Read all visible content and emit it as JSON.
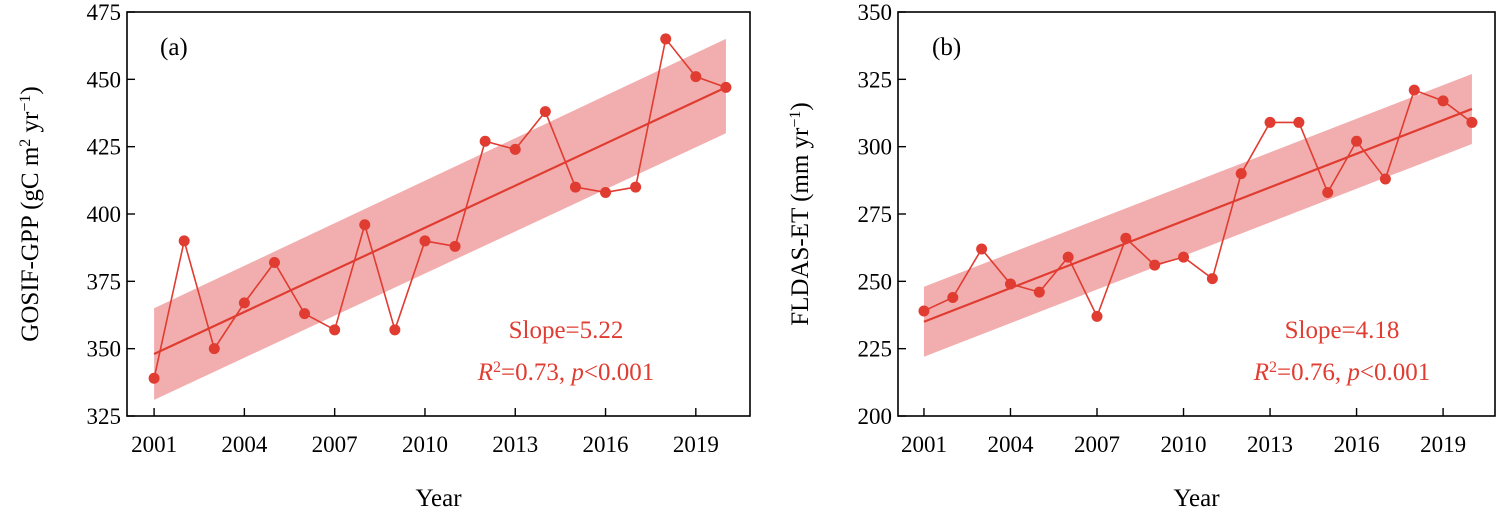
{
  "colors": {
    "series": "#e03c31",
    "band": "#f0a0a0",
    "annotation": "#e03c31"
  },
  "chart_data": [
    {
      "type": "line",
      "panel_label": "(a)",
      "xlabel": "Year",
      "ylabel_main": "GOSIF-GPP (gC m",
      "ylabel_sup1": "2",
      "ylabel_mid": " yr",
      "ylabel_sup2": "−1",
      "ylabel_end": ")",
      "xlim": [
        2000.1,
        2020.8
      ],
      "ylim": [
        325,
        475
      ],
      "xticks": [
        2001,
        2004,
        2007,
        2010,
        2013,
        2016,
        2019
      ],
      "yticks": [
        325,
        350,
        375,
        400,
        425,
        450,
        475
      ],
      "x": [
        2001,
        2002,
        2003,
        2004,
        2005,
        2006,
        2007,
        2008,
        2009,
        2010,
        2011,
        2012,
        2013,
        2014,
        2015,
        2016,
        2017,
        2018,
        2019,
        2020
      ],
      "series": [
        {
          "values": [
            339,
            390,
            350,
            367,
            382,
            363,
            357,
            396,
            357,
            390,
            388,
            427,
            424,
            438,
            410,
            408,
            410,
            465,
            451,
            447
          ]
        }
      ],
      "trend": {
        "x": [
          2001,
          2020
        ],
        "y": [
          348,
          447
        ]
      },
      "confidence_band": {
        "x": [
          2001,
          2020
        ],
        "upper": [
          365,
          465
        ],
        "lower": [
          331,
          430
        ]
      },
      "slope_text": "Slope=5.22",
      "r2_prefix": "R",
      "r2_sup": "2",
      "r2_value": "=0.73, ",
      "p_prefix": "p",
      "p_value": "<0.001"
    },
    {
      "type": "line",
      "panel_label": "(b)",
      "xlabel": "Year",
      "ylabel_main": "FLDAS-ET (mm yr",
      "ylabel_sup1": "",
      "ylabel_mid": "",
      "ylabel_sup2": "−1",
      "ylabel_end": ")",
      "xlim": [
        2000.1,
        2020.8
      ],
      "ylim": [
        200,
        350
      ],
      "xticks": [
        2001,
        2004,
        2007,
        2010,
        2013,
        2016,
        2019
      ],
      "yticks": [
        200,
        225,
        250,
        275,
        300,
        325,
        350
      ],
      "x": [
        2001,
        2002,
        2003,
        2004,
        2005,
        2006,
        2007,
        2008,
        2009,
        2010,
        2011,
        2012,
        2013,
        2014,
        2015,
        2016,
        2017,
        2018,
        2019,
        2020
      ],
      "series": [
        {
          "values": [
            239,
            244,
            262,
            249,
            246,
            259,
            237,
            266,
            256,
            259,
            251,
            290,
            309,
            309,
            283,
            302,
            288,
            321,
            317,
            309
          ]
        }
      ],
      "trend": {
        "x": [
          2001,
          2020
        ],
        "y": [
          235,
          314
        ]
      },
      "confidence_band": {
        "x": [
          2001,
          2020
        ],
        "upper": [
          248,
          327
        ],
        "lower": [
          222,
          301
        ]
      },
      "slope_text": "Slope=4.18",
      "r2_prefix": "R",
      "r2_sup": "2",
      "r2_value": "=0.76, ",
      "p_prefix": "p",
      "p_value": "<0.001"
    }
  ]
}
